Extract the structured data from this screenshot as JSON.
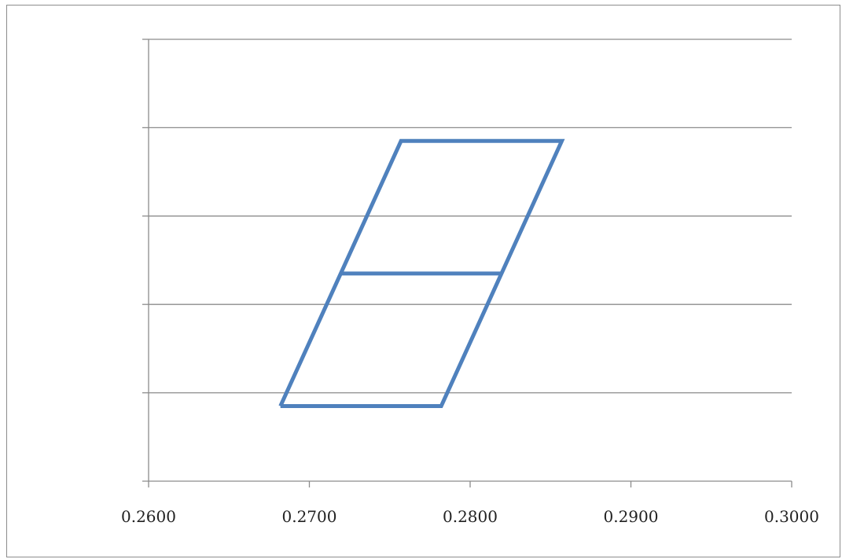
{
  "chart_data": {
    "type": "line",
    "title": "",
    "xlabel": "",
    "ylabel": "",
    "xlim": [
      0.26,
      0.3
    ],
    "ylim": [
      0,
      5
    ],
    "x_ticks": [
      "0.2600",
      "0.2700",
      "0.2800",
      "0.2900",
      "0.3000"
    ],
    "x_tick_values": [
      0.26,
      0.27,
      0.28,
      0.29,
      0.3
    ],
    "y_gridlines": [
      1,
      2,
      3,
      4,
      5
    ],
    "y_tick_labels_shown": false,
    "grid": "horizontal",
    "legend": "none",
    "series": [
      {
        "values": [
          {
            "x": 0.2682,
            "y": 0.85
          },
          {
            "x": 0.2782,
            "y": 0.85
          },
          {
            "x": 0.2857,
            "y": 3.85
          },
          {
            "x": 0.2757,
            "y": 3.85
          },
          {
            "x": 0.2682,
            "y": 0.85
          }
        ]
      },
      {
        "values": [
          {
            "x": 0.272,
            "y": 2.35
          },
          {
            "x": 0.282,
            "y": 2.35
          }
        ]
      }
    ],
    "colors": {
      "series": "#4f81bd",
      "gridline": "#8c8c8c",
      "axis": "#8c8c8c",
      "frame": "#8c8c8c"
    }
  }
}
